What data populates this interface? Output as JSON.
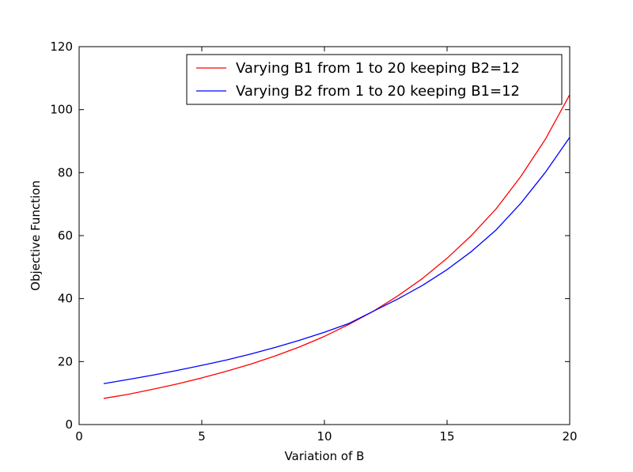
{
  "chart_data": {
    "type": "line",
    "title": "",
    "xlabel": "Variation of B",
    "ylabel": "Objective Function",
    "xlim": [
      0,
      20
    ],
    "ylim": [
      0,
      120
    ],
    "xticks": [
      0,
      5,
      10,
      15,
      20
    ],
    "yticks": [
      0,
      20,
      40,
      60,
      80,
      100,
      120
    ],
    "grid": false,
    "legend_position": "top-right",
    "x": [
      1,
      2,
      3,
      4,
      5,
      6,
      7,
      8,
      9,
      10,
      11,
      12,
      13,
      14,
      15,
      16,
      17,
      18,
      19,
      20
    ],
    "series": [
      {
        "name": "Varying B1 from 1 to 20 keeping B2=12",
        "color": "#ff0000",
        "values": [
          8.3,
          9.6,
          11.2,
          12.9,
          14.8,
          16.9,
          19.2,
          21.8,
          24.7,
          28.0,
          31.8,
          36.0,
          40.9,
          46.4,
          52.8,
          60.1,
          68.5,
          78.7,
          90.5,
          104.7
        ]
      },
      {
        "name": "Varying B2 from 1 to 20 keeping B1=12",
        "color": "#0000ff",
        "values": [
          13.0,
          14.3,
          15.7,
          17.2,
          18.8,
          20.5,
          22.4,
          24.5,
          26.8,
          29.3,
          32.1,
          36.0,
          39.9,
          44.2,
          49.2,
          55.0,
          61.8,
          70.2,
          80.0,
          91.2
        ]
      }
    ]
  }
}
